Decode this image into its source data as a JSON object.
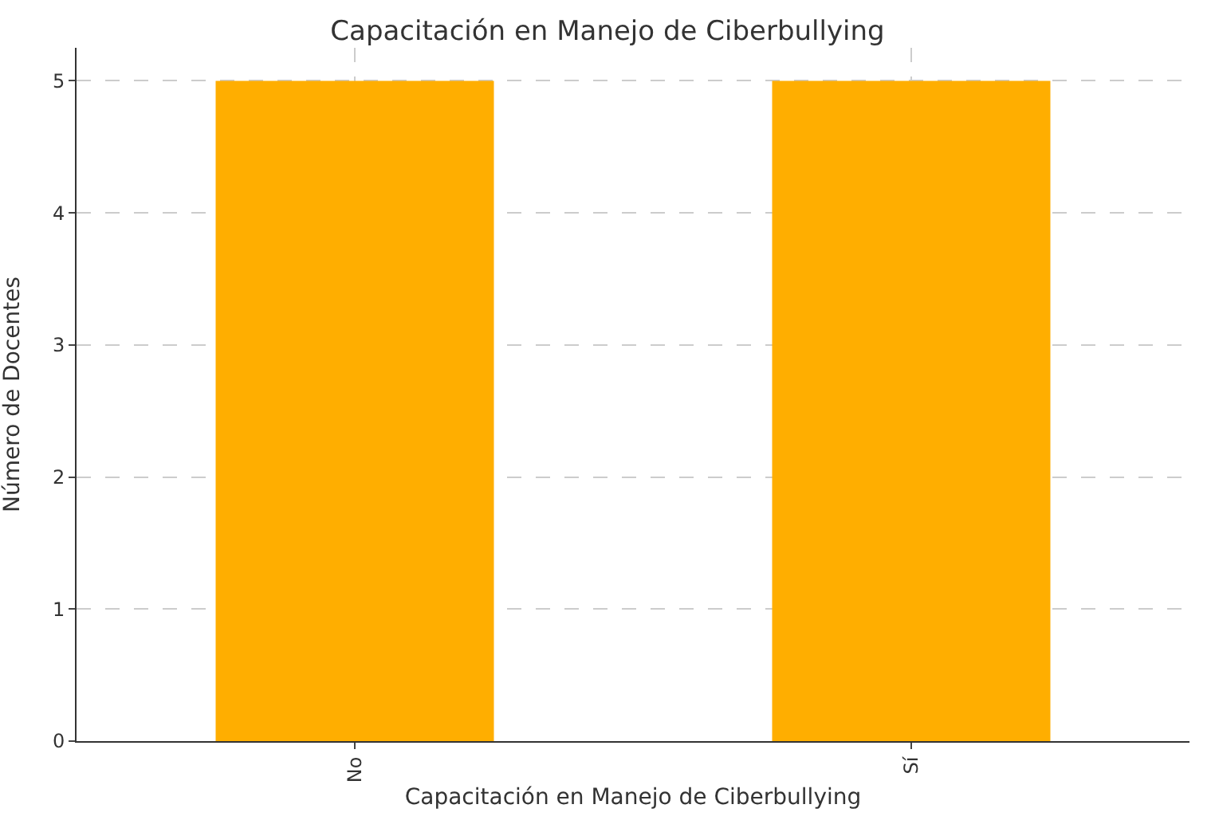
{
  "chart_data": {
    "type": "bar",
    "title": "Capacitación en Manejo de Ciberbullying",
    "xlabel": "Capacitación en Manejo de Ciberbullying",
    "ylabel": "Número de Docentes",
    "categories": [
      "No",
      "Sí"
    ],
    "values": [
      5,
      5
    ],
    "color": "#ffae00",
    "ylim": [
      0,
      5.25
    ],
    "yticks": [
      0,
      1,
      2,
      3,
      4,
      5
    ],
    "grid": true
  }
}
